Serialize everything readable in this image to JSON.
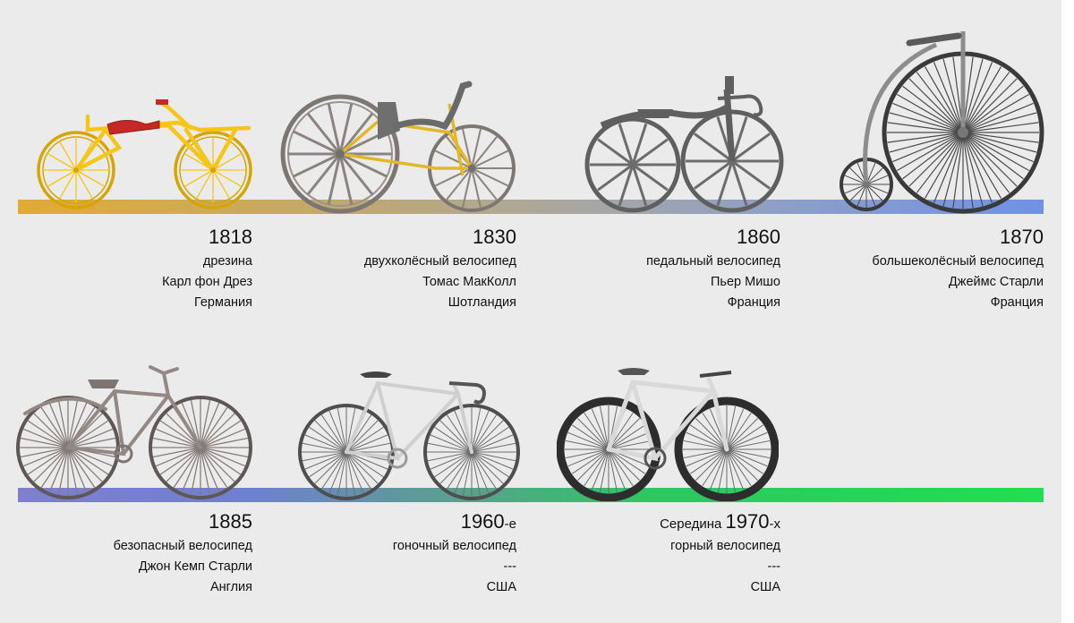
{
  "timeline": [
    {
      "id": "t1818",
      "year": "1818",
      "prefix": "",
      "suffix": "",
      "type": "дрезина",
      "inventor": "Карл фон Дрез",
      "country": "Германия"
    },
    {
      "id": "t1830",
      "year": "1830",
      "prefix": "",
      "suffix": "",
      "type": "двухколёсный велосипед",
      "inventor": "Томас МакКолл",
      "country": "Шотландия"
    },
    {
      "id": "t1860",
      "year": "1860",
      "prefix": "",
      "suffix": "",
      "type": "педальный велосипед",
      "inventor": "Пьер Мишо",
      "country": "Франция"
    },
    {
      "id": "t1870",
      "year": "1870",
      "prefix": "",
      "suffix": "",
      "type": "большеколёсный велосипед",
      "inventor": "Джеймс Старли",
      "country": "Франция"
    },
    {
      "id": "t1885",
      "year": "1885",
      "prefix": "",
      "suffix": "",
      "type": "безопасный велосипед",
      "inventor": "Джон Кемп Старли",
      "country": "Англия"
    },
    {
      "id": "t1960",
      "year": "1960",
      "prefix": "",
      "suffix": "-е",
      "type": "гоночный велосипед",
      "inventor": "---",
      "country": "США"
    },
    {
      "id": "t1970",
      "year": "1970",
      "prefix": "Середина ",
      "suffix": "-х",
      "type": "горный велосипед",
      "inventor": "---",
      "country": "США"
    }
  ],
  "colors": {
    "yellow_frame": "#f5c518",
    "red_seat": "#c62828",
    "gray_wheel": "#8a8380",
    "dark_iron": "#5f5f5f",
    "penny_frame": "#8d8d8d",
    "safety_frame": "#928985",
    "silver_frame": "#cfcfcf",
    "mtb_frame": "#d9d9d9"
  },
  "icons": [
    "draisine-icon",
    "mccall-velocipede-icon",
    "boneshaker-icon",
    "penny-farthing-icon",
    "safety-bicycle-icon",
    "road-bike-icon",
    "mountain-bike-icon"
  ]
}
